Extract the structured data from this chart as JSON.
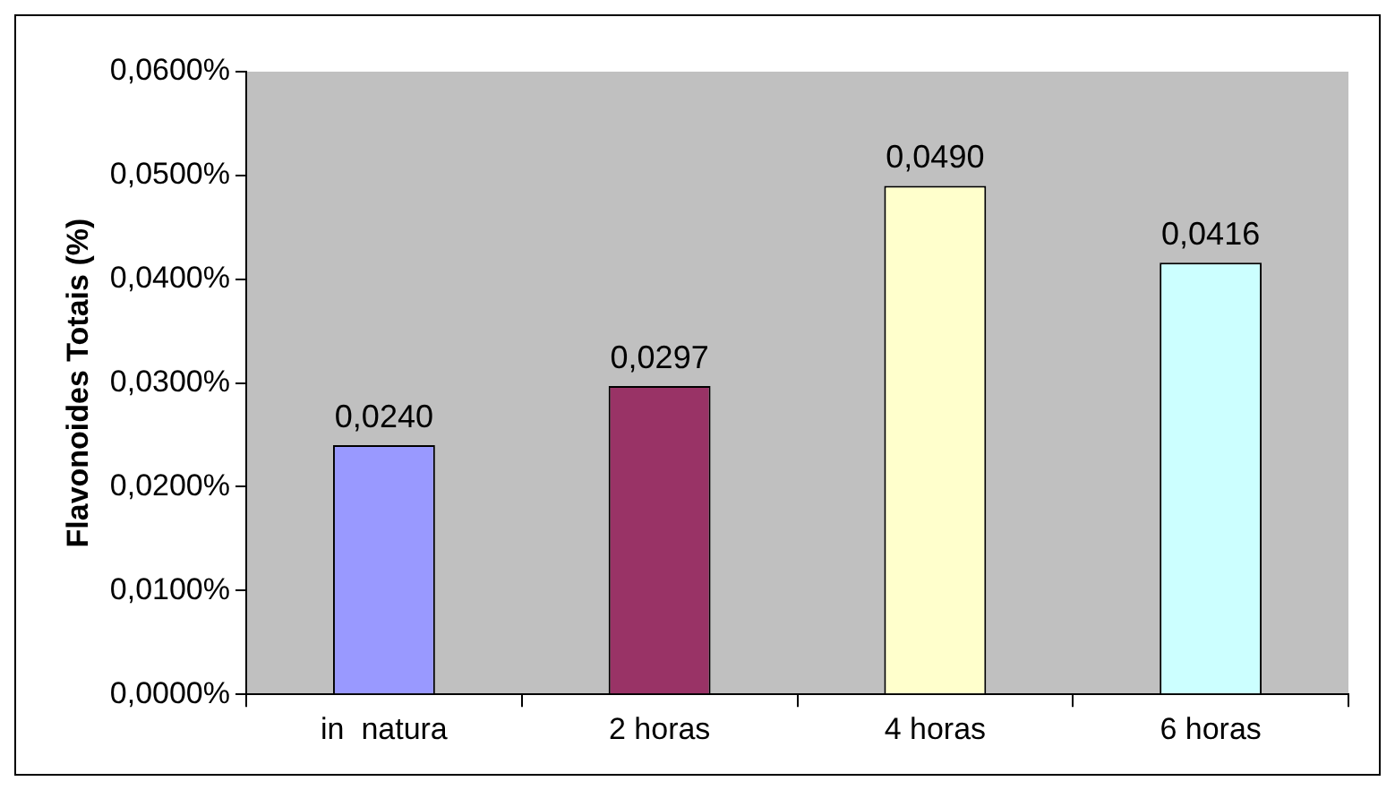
{
  "chart_data": {
    "type": "bar",
    "ylabel": "Flavonoides Totais (%)",
    "categories": [
      "in  natura",
      "2 horas",
      "4 horas",
      "6 horas"
    ],
    "values": [
      0.024,
      0.0297,
      0.049,
      0.0416
    ],
    "colors": [
      "#9999ff",
      "#993366",
      "#ffffcc",
      "#ccffff"
    ],
    "value_labels": [
      "0,0240",
      "0,0297",
      "0,0490",
      "0,0416"
    ],
    "ylim": [
      0,
      0.06
    ],
    "yticks": [
      {
        "value": 0,
        "label": "0,0000%"
      },
      {
        "value": 0.01,
        "label": "0,0100%"
      },
      {
        "value": 0.02,
        "label": "0,0200%"
      },
      {
        "value": 0.03,
        "label": "0,0300%"
      },
      {
        "value": 0.04,
        "label": "0,0400%"
      },
      {
        "value": 0.05,
        "label": "0,0500%"
      },
      {
        "value": 0.06,
        "label": "0,0600%"
      }
    ],
    "grid": false,
    "legend": false
  }
}
